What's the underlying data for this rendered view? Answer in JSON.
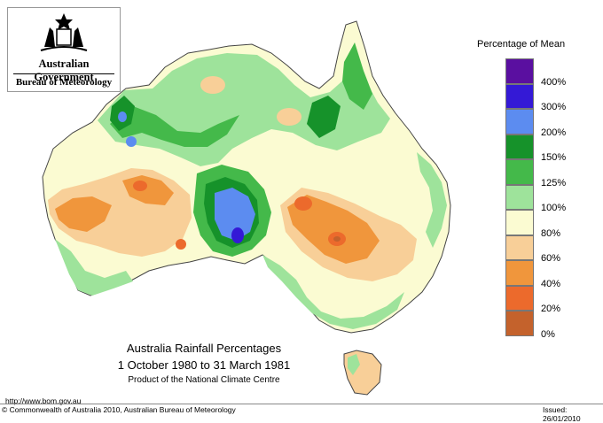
{
  "logo": {
    "line1": "Australian Government",
    "line2": "Bureau of Meteorology",
    "emblem": "commonwealth-coat-of-arms"
  },
  "legend": {
    "title": "Percentage of Mean",
    "items": [
      {
        "label": "400%",
        "color": "#5a0fa0"
      },
      {
        "label": "300%",
        "color": "#3419d6"
      },
      {
        "label": "200%",
        "color": "#5c8cf0"
      },
      {
        "label": "150%",
        "color": "#16922a"
      },
      {
        "label": "125%",
        "color": "#44b94a"
      },
      {
        "label": "100%",
        "color": "#9ee39b"
      },
      {
        "label": "80%",
        "color": "#fbfbd2"
      },
      {
        "label": "60%",
        "color": "#f8cf98"
      },
      {
        "label": "40%",
        "color": "#f0963c"
      },
      {
        "label": "20%",
        "color": "#ec6a2c"
      },
      {
        "label": "0%",
        "color": "#c4622c"
      }
    ]
  },
  "title": {
    "line1": "Australia Rainfall Percentages",
    "line2": "1 October 1980 to 31 March 1981",
    "line3": "Product of the National Climate Centre"
  },
  "footer": {
    "url": "http://www.bom.gov.au",
    "copyright": "© Commonwealth of Australia 2010, Australian Bureau of Meteorology",
    "issued": "Issued: 26/01/2010"
  }
}
